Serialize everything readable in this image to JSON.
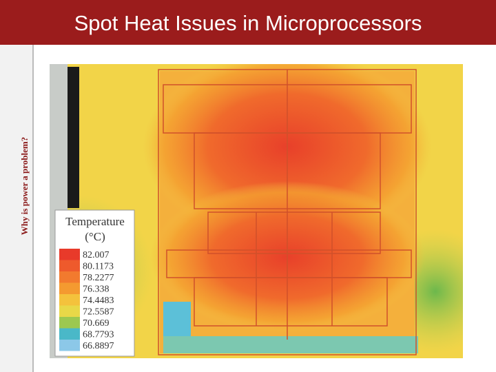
{
  "header": {
    "title": "Spot Heat Issues in Microprocessors"
  },
  "sidebar": {
    "label": "Why is power a problem?"
  },
  "legend": {
    "title": "Temperature",
    "unit": "(°C)",
    "levels": [
      "82.007",
      "80.1173",
      "78.2277",
      "76.338",
      "74.4483",
      "72.5587",
      "70.669",
      "68.7793",
      "66.8897"
    ]
  }
}
